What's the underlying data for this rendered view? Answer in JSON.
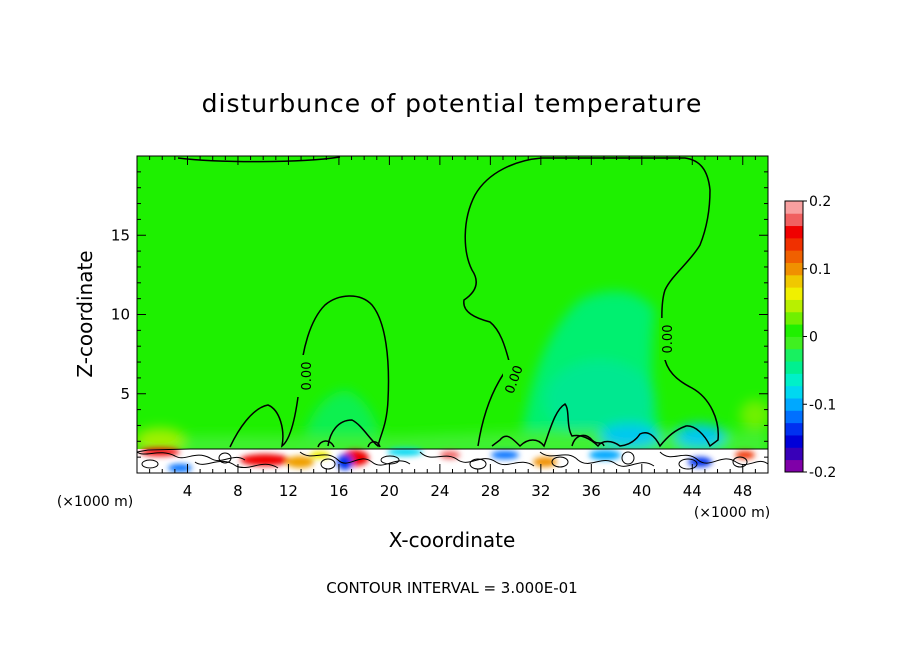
{
  "chart_data": {
    "type": "heatmap",
    "title": "disturbunce of potential temperature",
    "xlabel": "X-coordinate",
    "ylabel": "Z-coordinate",
    "x_unit_left": "(×1000 m)",
    "x_unit_right": "(×1000 m)",
    "xlim": [
      0,
      50
    ],
    "ylim": [
      0,
      20
    ],
    "x_ticks": [
      4,
      8,
      12,
      16,
      20,
      24,
      28,
      32,
      36,
      40,
      44,
      48
    ],
    "x_tick_labels": [
      "4",
      "8",
      "12",
      "16",
      "20",
      "24",
      "28",
      "32",
      "36",
      "40",
      "44",
      "48"
    ],
    "y_ticks": [
      5,
      10,
      15
    ],
    "y_tick_labels": [
      "5",
      "10",
      "15"
    ],
    "colorbar": {
      "range": [
        -0.2,
        0.2
      ],
      "tick_labels": [
        "0.2",
        "0.1",
        "0",
        "-0.1",
        "-0.2"
      ],
      "tick_values": [
        0.2,
        0.1,
        0,
        -0.1,
        -0.2
      ],
      "colors": [
        "#7f00a8",
        "#3800b8",
        "#0000d8",
        "#0030f0",
        "#0070ff",
        "#00a8ff",
        "#00d8f0",
        "#00f0c8",
        "#00f090",
        "#18f060",
        "#40f020",
        "#20f000",
        "#70f000",
        "#b8f000",
        "#f0f000",
        "#f0c800",
        "#f09000",
        "#f06000",
        "#f03000",
        "#f00000",
        "#f06060",
        "#f8a0a0"
      ]
    },
    "contour_labels": [
      "0.00",
      "0.00",
      "0.00"
    ],
    "contour_label_values": [
      0.0,
      0.0,
      0.0
    ],
    "note": "CONTOUR INTERVAL = 3.000E-01",
    "grid": false
  }
}
